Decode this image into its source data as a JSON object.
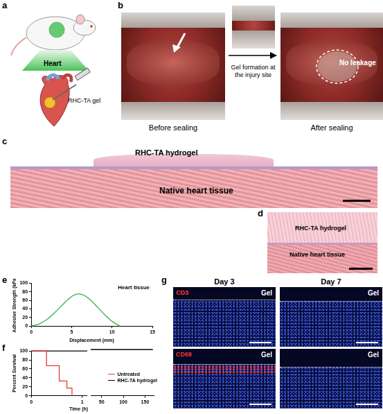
{
  "panels": {
    "a": {
      "label": "a",
      "texts": [
        "Heart",
        "RHC-TA gel"
      ]
    },
    "b": {
      "label": "b",
      "before": "Before sealing",
      "step": "Gel formation at the injury site",
      "after": "After sealing",
      "note": "No leakage"
    },
    "c": {
      "label": "c",
      "top": "RHC-TA hydrogel",
      "bottom": "Native heart tissue"
    },
    "d": {
      "label": "d",
      "top": "RHC-TA hydrogel",
      "bottom": "Native heart tissue"
    },
    "e": {
      "label": "e"
    },
    "f": {
      "label": "f",
      "xlabel": "Time (h)"
    },
    "g": {
      "label": "g",
      "columns": [
        "Day 3",
        "Day 7"
      ],
      "rows": [
        {
          "stain": "CD3",
          "cells": [
            "Gel",
            "Gel"
          ]
        },
        {
          "stain": "CD68",
          "cells": [
            "Gel",
            "Gel"
          ]
        }
      ]
    }
  },
  "chart_data": [
    {
      "type": "line",
      "annotation": "Heart tissue",
      "xlabel": "Displacement (mm)",
      "ylabel": "Adhesive Strength (kPa)",
      "x": [
        0,
        0.5,
        1,
        1.5,
        2,
        2.5,
        3,
        3.5,
        4,
        4.5,
        5,
        5.5,
        6,
        6.5,
        7,
        7.5,
        8,
        8.5,
        9,
        9.5,
        10,
        10.5,
        11
      ],
      "values": [
        0,
        2,
        5,
        10,
        16,
        24,
        33,
        42,
        52,
        61,
        69,
        74,
        75,
        72,
        66,
        58,
        48,
        38,
        28,
        19,
        11,
        5,
        0
      ],
      "color": "#2db34a",
      "xlim": [
        0,
        15
      ],
      "xticks": [
        0,
        5,
        10,
        15
      ],
      "ylim": [
        0,
        100
      ],
      "yticks": [
        0,
        20,
        40,
        60,
        80,
        100
      ],
      "grid": false
    },
    {
      "type": "line",
      "line_style": "step",
      "ylabel": "Percent Survival",
      "xlim": [
        0,
        1.1
      ],
      "xticks": [
        0,
        1
      ],
      "ylim": [
        0,
        100
      ],
      "yticks": [
        0,
        20,
        40,
        60,
        80,
        100
      ],
      "grid": false,
      "series": [
        {
          "color": "#e03c31",
          "x": [
            0,
            0.3,
            0.55,
            0.7,
            0.8
          ],
          "values": [
            100,
            67,
            33,
            17,
            0
          ]
        },
        {
          "color": "#000000",
          "x": [
            0,
            1.1
          ],
          "values": [
            100,
            100
          ]
        }
      ]
    },
    {
      "type": "line",
      "line_style": "step",
      "legend": "right",
      "tick_labels": "x",
      "xlim": [
        25,
        170
      ],
      "xticks": [
        50,
        100,
        150
      ],
      "ylim": [
        0,
        100
      ],
      "grid": false,
      "series": [
        {
          "name": "Untreated",
          "color": "#e03c31",
          "x": [
            25,
            170
          ],
          "values": [
            null,
            null
          ]
        },
        {
          "name": "RHC-TA hydrogel",
          "color": "#000000",
          "x": [
            25,
            168
          ],
          "values": [
            100,
            100
          ]
        }
      ]
    }
  ]
}
